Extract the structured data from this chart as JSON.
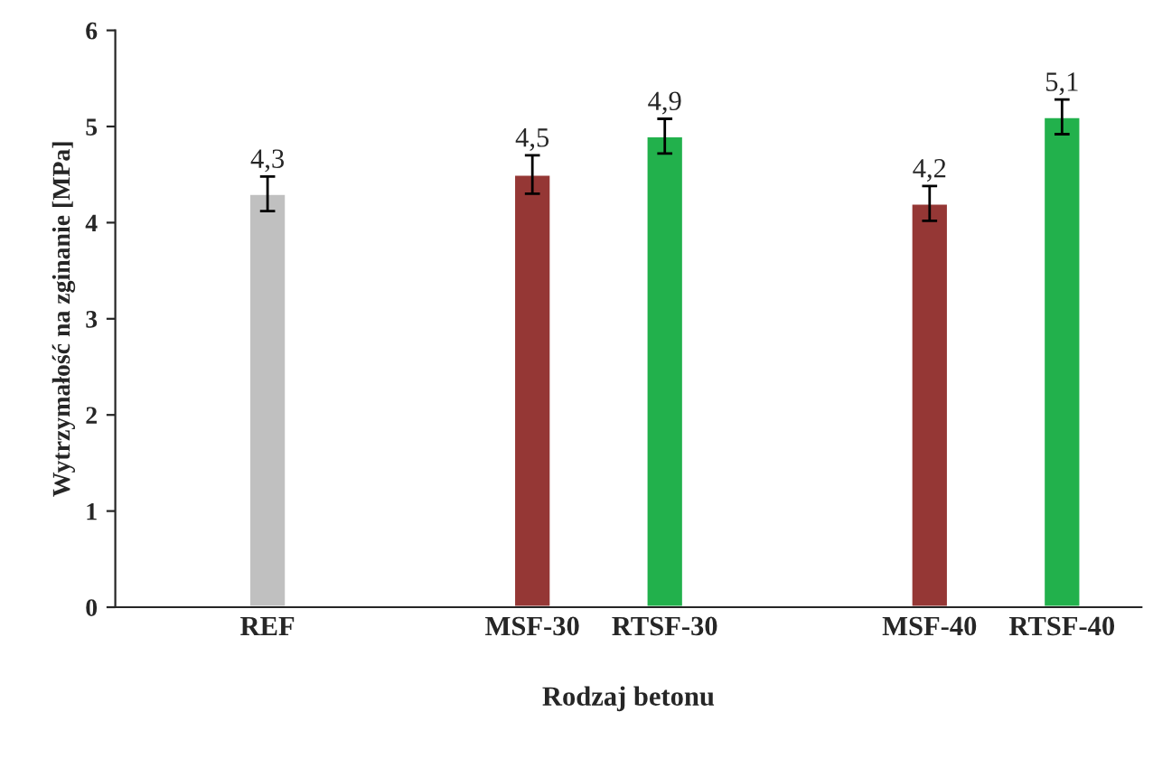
{
  "chart_data": {
    "type": "bar",
    "xlabel": "Rodzaj betonu",
    "ylabel": "Wytrzymałość na zginanie [MPa]",
    "categories": [
      "REF",
      null,
      "MSF-30",
      "RTSF-30",
      null,
      "MSF-40",
      "RTSF-40"
    ],
    "values": [
      4.3,
      null,
      4.5,
      4.9,
      null,
      4.2,
      5.1
    ],
    "colors": [
      "#c0c0c0",
      null,
      "#953735",
      "#22b14c",
      null,
      "#953735",
      "#22b14c"
    ],
    "errors": [
      0.18,
      null,
      0.2,
      0.18,
      null,
      0.18,
      0.18
    ],
    "value_labels": [
      "4,3",
      null,
      "4,5",
      "4,9",
      null,
      "4,2",
      "5,1"
    ],
    "ylim": [
      0,
      6
    ],
    "yticks": [
      0,
      1,
      2,
      3,
      4,
      5,
      6
    ],
    "grid": false,
    "legend": false
  }
}
